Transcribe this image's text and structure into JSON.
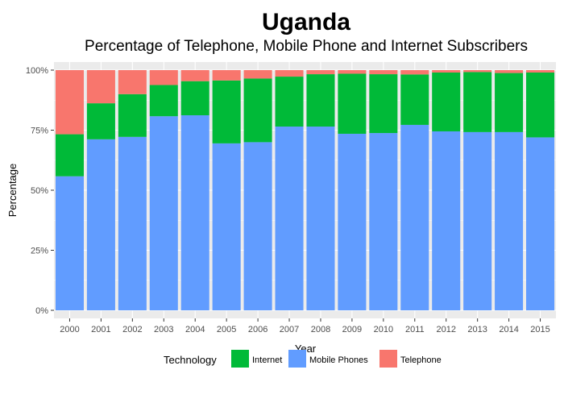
{
  "chart_data": {
    "type": "bar",
    "stacked": true,
    "normalized": true,
    "title": "Uganda",
    "subtitle": "Percentage of Telephone, Mobile Phone and Internet Subscribers",
    "xlabel": "Year",
    "ylabel": "Percentage",
    "ylim": [
      0,
      1
    ],
    "yticks": [
      "0%",
      "25%",
      "50%",
      "75%",
      "100%"
    ],
    "grid": true,
    "legend": {
      "title": "Technology",
      "placement": "bottom",
      "entries": [
        "Internet",
        "Mobile Phones",
        "Telephone"
      ]
    },
    "categories": [
      "2000",
      "2001",
      "2002",
      "2003",
      "2004",
      "2005",
      "2006",
      "2007",
      "2008",
      "2009",
      "2010",
      "2011",
      "2012",
      "2013",
      "2014",
      "2015"
    ],
    "series": [
      {
        "name": "Mobile Phones",
        "color": "#619CFF",
        "values": [
          0.558,
          0.712,
          0.722,
          0.808,
          0.812,
          0.695,
          0.7,
          0.765,
          0.765,
          0.735,
          0.738,
          0.772,
          0.745,
          0.742,
          0.742,
          0.72
        ]
      },
      {
        "name": "Internet",
        "color": "#00BA38",
        "values": [
          0.175,
          0.15,
          0.178,
          0.13,
          0.142,
          0.262,
          0.265,
          0.208,
          0.218,
          0.25,
          0.245,
          0.21,
          0.245,
          0.25,
          0.246,
          0.27
        ]
      },
      {
        "name": "Telephone",
        "color": "#F8766D",
        "values": [
          0.267,
          0.138,
          0.1,
          0.062,
          0.046,
          0.043,
          0.035,
          0.027,
          0.017,
          0.015,
          0.017,
          0.018,
          0.01,
          0.008,
          0.012,
          0.01
        ]
      }
    ]
  }
}
